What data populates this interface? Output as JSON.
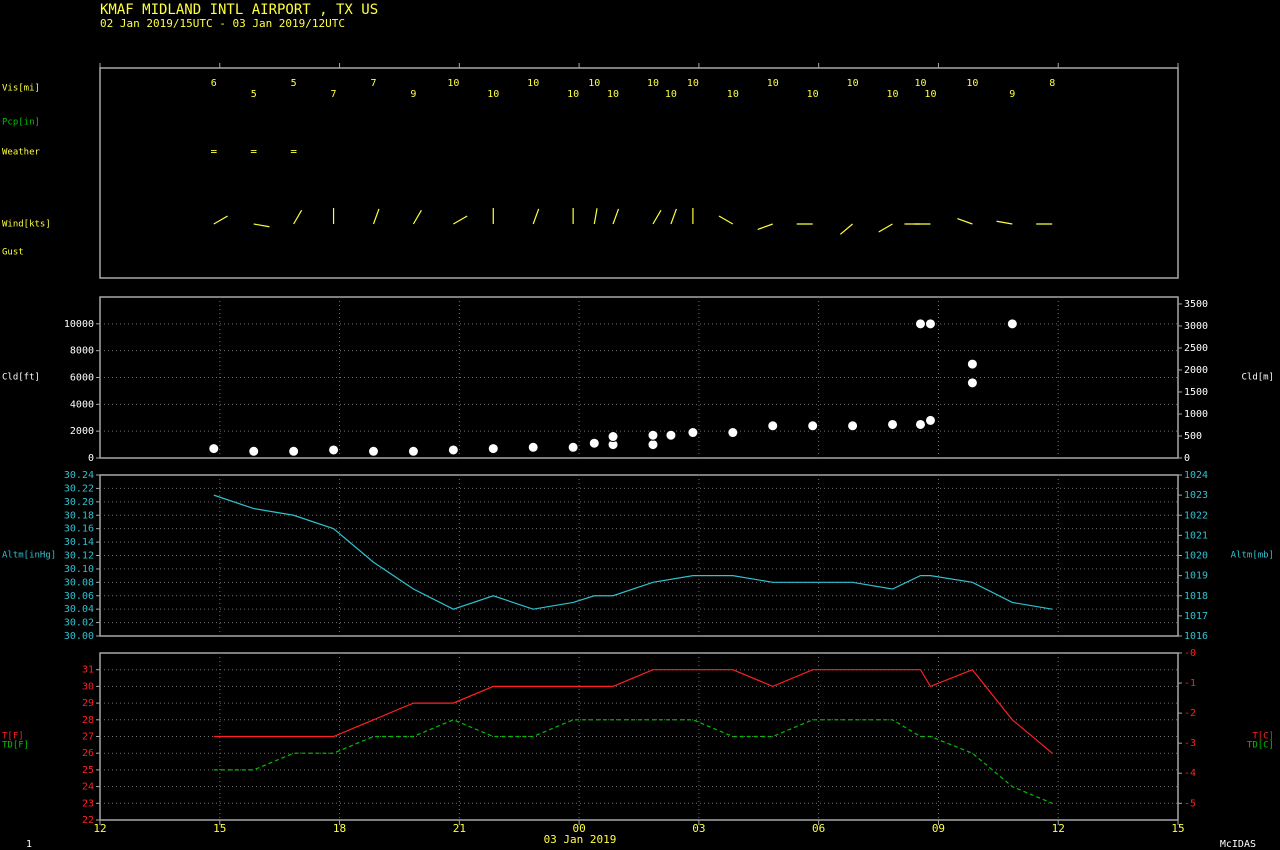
{
  "header": {
    "title": "KMAF  MIDLAND INTL AIRPORT , TX US",
    "subtitle": "02 Jan 2019/15UTC - 03 Jan 2019/12UTC"
  },
  "chart_data": [
    {
      "type": "station",
      "x": [
        14.85,
        15.85,
        16.85,
        17.85,
        18.85,
        19.85,
        20.85,
        21.85,
        22.85,
        23.85,
        24.38,
        24.85,
        25.85,
        26.3,
        26.85,
        27.85,
        28.85,
        29.85,
        30.85,
        31.85,
        32.55,
        32.8,
        33.85,
        34.85,
        35.85
      ],
      "visibility": {
        "label": "Vis[mi]",
        "values": [
          6,
          5,
          5,
          7,
          7,
          9,
          10,
          10,
          10,
          10,
          10,
          10,
          10,
          10,
          10,
          10,
          10,
          10,
          10,
          10,
          10,
          10,
          10,
          9,
          8
        ]
      },
      "precip": {
        "label": "Pcp[in]"
      },
      "weather": {
        "label": "Weather",
        "values": [
          "=",
          "=",
          "=",
          null,
          null,
          null,
          null,
          null,
          null,
          null,
          null,
          null,
          null,
          null,
          null,
          null,
          null,
          null,
          null,
          null,
          null,
          null,
          null,
          null,
          null
        ]
      },
      "wind": {
        "label": "Wind[kts]",
        "direction": [
          60,
          100,
          30,
          360,
          20,
          30,
          60,
          360,
          20,
          360,
          10,
          20,
          30,
          20,
          360,
          300,
          250,
          270,
          230,
          240,
          270,
          270,
          290,
          280,
          270
        ]
      },
      "gust": {
        "label": "Gust"
      }
    },
    {
      "type": "scatter",
      "ylabel": "Cld[ft]",
      "y2label": "Cld[m]",
      "color": "#ffffff",
      "grid": true,
      "ylim": [
        0,
        12000
      ],
      "yticks": [
        0,
        2000,
        4000,
        6000,
        8000,
        10000
      ],
      "y2lim": [
        0,
        3658
      ],
      "y2ticks": [
        0,
        500,
        1000,
        1500,
        2000,
        2500,
        3000,
        3500
      ],
      "x": [
        14.85,
        15.85,
        16.85,
        17.85,
        18.85,
        19.85,
        20.85,
        21.85,
        22.85,
        23.85,
        24.38,
        24.85,
        24.85,
        25.85,
        25.85,
        26.3,
        26.85,
        27.85,
        28.85,
        29.85,
        30.85,
        31.85,
        32.55,
        32.55,
        32.8,
        32.8,
        33.85,
        33.85,
        34.85
      ],
      "values": [
        700,
        500,
        500,
        600,
        500,
        500,
        600,
        700,
        800,
        800,
        1100,
        1000,
        1600,
        1000,
        1700,
        1700,
        1900,
        1900,
        2400,
        2400,
        2400,
        2500,
        2500,
        10000,
        2800,
        10000,
        5600,
        7000,
        10000
      ]
    },
    {
      "type": "line",
      "ylabel": "Altm[inHg]",
      "y2label": "Altm[mb]",
      "color": "#30c0d0",
      "grid": true,
      "ylim": [
        30.0,
        30.24
      ],
      "yticks": [
        {
          "value": 30.0,
          "label": "30.00"
        },
        30.02,
        30.04,
        30.06,
        30.08,
        {
          "value": 30.1,
          "label": "30.10"
        },
        30.12,
        30.14,
        30.16,
        30.18,
        {
          "value": 30.2,
          "label": "30.20"
        },
        30.22,
        30.24
      ],
      "y2lim": [
        1016,
        1024
      ],
      "y2ticks": [
        1016,
        1017,
        1018,
        1019,
        1020,
        1021,
        1022,
        1023,
        1024
      ],
      "x": [
        14.85,
        15.85,
        16.85,
        17.85,
        18.85,
        19.85,
        20.85,
        21.85,
        22.85,
        23.85,
        24.38,
        24.85,
        25.85,
        26.85,
        27.85,
        28.85,
        29.85,
        30.85,
        31.85,
        32.55,
        32.8,
        33.85,
        34.85,
        35.85
      ],
      "values": [
        30.21,
        30.19,
        30.18,
        30.16,
        30.11,
        30.07,
        30.04,
        30.06,
        30.04,
        30.05,
        30.06,
        30.06,
        30.08,
        30.09,
        30.09,
        30.08,
        30.08,
        30.08,
        30.07,
        30.09,
        30.09,
        30.08,
        30.05,
        30.04
      ]
    },
    {
      "type": "line",
      "grid": true,
      "xlabel": "03 Jan 2019",
      "xlim": [
        12,
        39
      ],
      "xticks": [
        12,
        15,
        18,
        21,
        {
          "value": 24,
          "label": "00"
        },
        {
          "value": 27,
          "label": "03"
        },
        {
          "value": 30,
          "label": "06"
        },
        {
          "value": 33,
          "label": "09"
        },
        {
          "value": 36,
          "label": "12"
        },
        {
          "value": 39,
          "label": "15"
        }
      ],
      "ylim": [
        22,
        32
      ],
      "yticks": [
        22,
        23,
        24,
        25,
        26,
        27,
        28,
        29,
        30,
        31
      ],
      "y2lim": [
        -5.556,
        0
      ],
      "y2ticks": [
        {
          "value": 0,
          "label": "-0"
        },
        -1,
        -2,
        -3,
        -4,
        -5
      ],
      "y2labels": [
        "T[C]",
        "TD[C]"
      ],
      "x": [
        14.85,
        15.85,
        16.85,
        17.85,
        18.85,
        19.85,
        20.85,
        21.85,
        22.85,
        23.85,
        24.38,
        24.85,
        25.85,
        26.85,
        27.85,
        28.85,
        29.85,
        30.85,
        31.85,
        32.55,
        32.8,
        33.85,
        34.85,
        35.85
      ],
      "series": [
        {
          "name": "T[F]",
          "color": "#ff2020",
          "style": "solid",
          "values": [
            27,
            27,
            27,
            27,
            28,
            29,
            29,
            30,
            30,
            30,
            30,
            30,
            31,
            31,
            31,
            30,
            31,
            31,
            31,
            31,
            30,
            31,
            28,
            26
          ]
        },
        {
          "name": "TD[F]",
          "color": "#00c000",
          "style": "dashed",
          "values": [
            25,
            25,
            26,
            26,
            27,
            27,
            28,
            27,
            27,
            28,
            28,
            28,
            28,
            28,
            27,
            27,
            28,
            28,
            28,
            27,
            27,
            26,
            24,
            23
          ]
        }
      ]
    }
  ],
  "footer": {
    "left": "1",
    "right": "McIDAS"
  }
}
